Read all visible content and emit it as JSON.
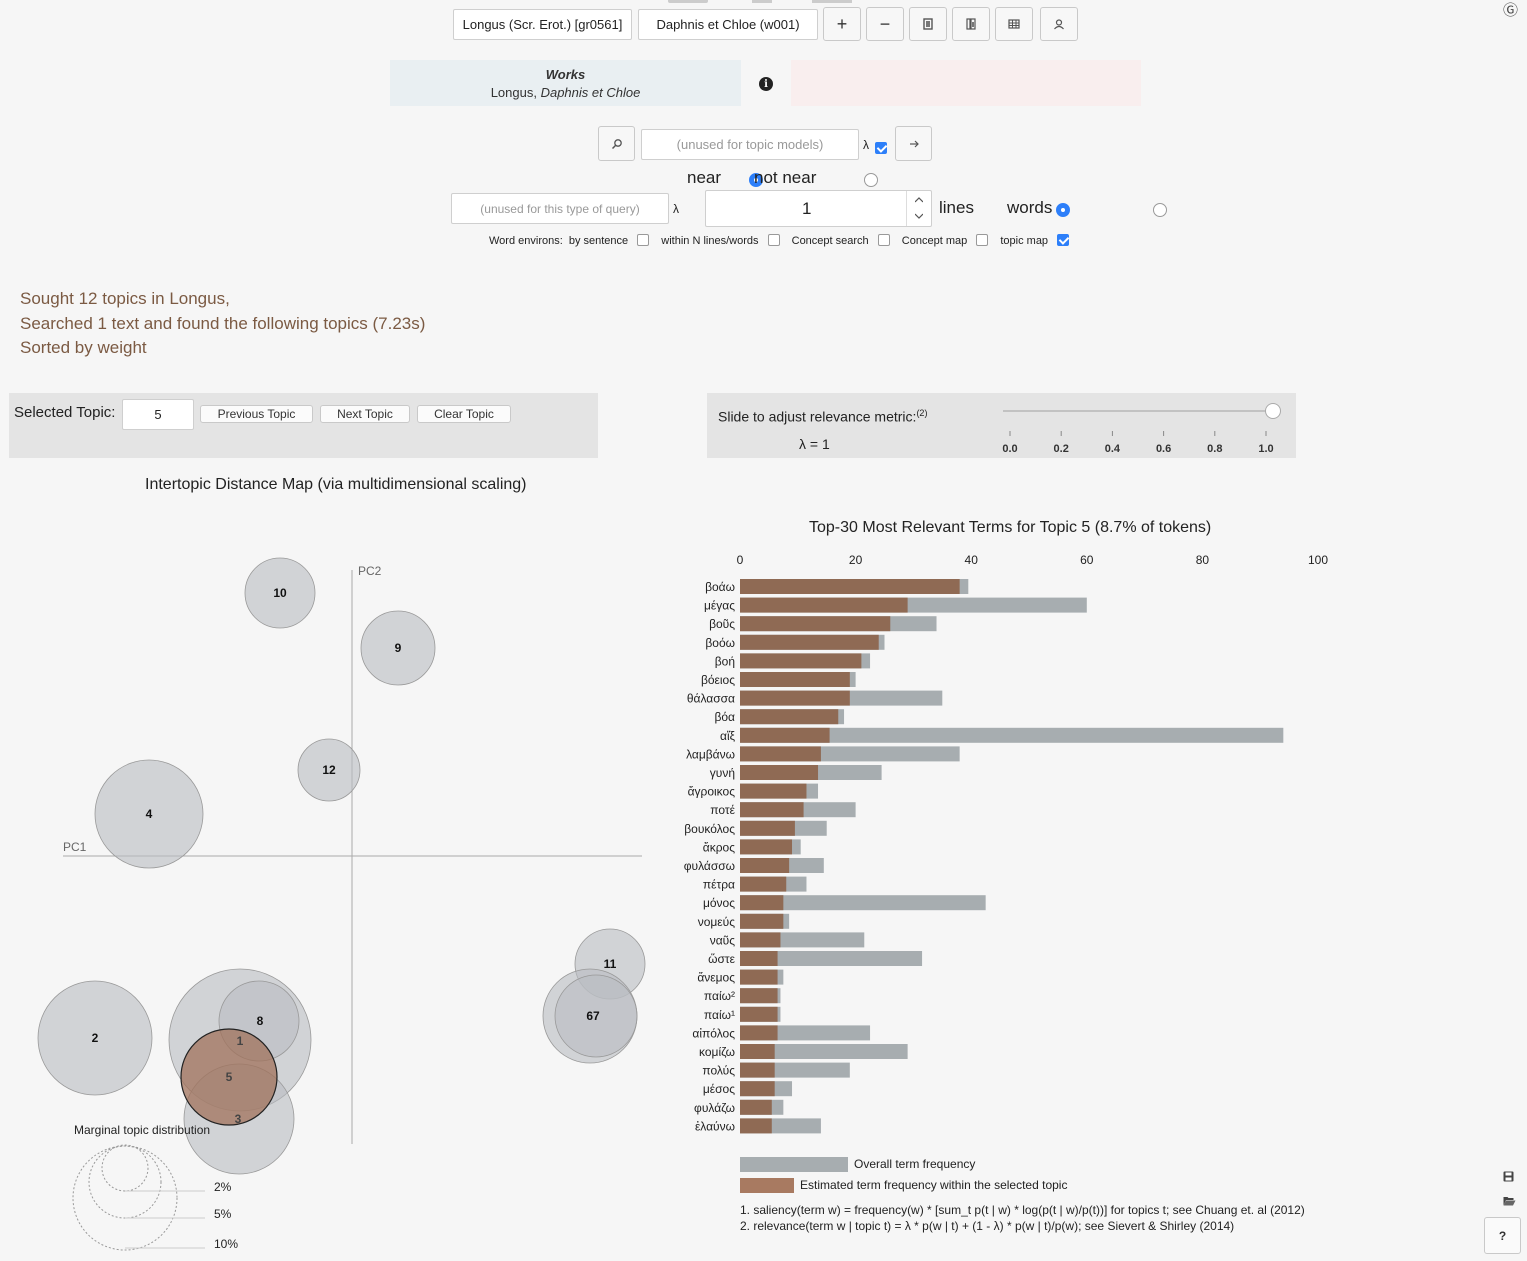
{
  "toolbar": {
    "author_select": "Longus (Scr. Erot.) [gr0561]",
    "work_select": "Daphnis et Chloe (w001)",
    "plus_label": "+",
    "minus_label": "−",
    "corner_label": "Ⓖ"
  },
  "works_box": {
    "heading": "Works",
    "author": "Longus,",
    "title": "Daphnis et Chloe"
  },
  "search": {
    "term_placeholder": "(unused for topic models)",
    "lambda": "λ",
    "near_label": "near",
    "not_near_label": "not near",
    "proximity_placeholder": "(unused for this type of query)",
    "proximity_value": "1",
    "lines_label": "lines",
    "words_label": "words",
    "environs_label": "Word environs:",
    "options": [
      {
        "label": "by sentence",
        "checked": false
      },
      {
        "label": "within N lines/words",
        "checked": false
      },
      {
        "label": "Concept search",
        "checked": false
      },
      {
        "label": "Concept map",
        "checked": false
      },
      {
        "label": "topic map",
        "checked": true
      }
    ]
  },
  "results": {
    "line1": "Sought 12 topics in Longus,",
    "line2": "Searched 1 text and found the following topics (7.23s)",
    "line3": "Sorted by weight"
  },
  "controls": {
    "selected_topic_label": "Selected Topic:",
    "selected_topic_value": "5",
    "prev_label": "Previous Topic",
    "next_label": "Next Topic",
    "clear_label": "Clear Topic",
    "slider_label": "Slide to adjust relevance metric:",
    "slider_sup": "(2)",
    "lambda_value": "λ = 1",
    "slider_value": 1.0,
    "slider_ticks": [
      "0.0",
      "0.2",
      "0.4",
      "0.6",
      "0.8",
      "1.0"
    ]
  },
  "topic_map": {
    "title": "Intertopic Distance Map (via multidimensional scaling)",
    "pc1": "PC1",
    "pc2": "PC2",
    "marginal_label": "Marginal topic distribution",
    "marginal_ticks": [
      "2%",
      "5%",
      "10%"
    ],
    "topics": [
      "10",
      "9",
      "12",
      "4",
      "2",
      "8",
      "1",
      "5",
      "3",
      "11",
      "6",
      "7"
    ],
    "selected": "5",
    "colors": {
      "circle": "#b9bdc2",
      "selected": "#a0725b"
    }
  },
  "chart_data": {
    "type": "bar",
    "title": "Top-30 Most Relevant Terms for Topic 5 (8.7% of tokens)",
    "xlim": [
      0,
      100
    ],
    "x_ticks": [
      "0",
      "20",
      "40",
      "60",
      "80",
      "100"
    ],
    "categories": [
      "βοάω",
      "μέγας",
      "βοῦς",
      "βοόω",
      "βοή",
      "βόειος",
      "θάλασσα",
      "βόα",
      "αἴξ",
      "λαμβάνω",
      "γυνή",
      "ἄγροικος",
      "ποτέ",
      "βουκόλος",
      "ἄκρος",
      "φυλάσσω",
      "πέτρα",
      "μόνος",
      "νομεύς",
      "ναῦς",
      "ὥστε",
      "ἄνεμος",
      "παίω²",
      "παίω¹",
      "αἰπόλος",
      "κομίζω",
      "πολύς",
      "μέσος",
      "φυλάζω",
      "ἐλαύνω"
    ],
    "series": [
      {
        "name": "Overall term frequency",
        "color": "#a7adb0",
        "values": [
          39.5,
          60,
          34,
          25,
          22.5,
          20,
          35,
          18,
          94,
          38,
          24.5,
          13.5,
          20,
          15,
          10.5,
          14.5,
          11.5,
          42.5,
          8.5,
          21.5,
          31.5,
          7.5,
          7,
          7,
          22.5,
          29,
          19,
          9,
          7.5,
          14
        ]
      },
      {
        "name": "Estimated term frequency within the selected topic",
        "color": "#8f6a54",
        "values": [
          38,
          29,
          26,
          24,
          21,
          19,
          19,
          17,
          15.5,
          14,
          13.5,
          11.5,
          11,
          9.5,
          9,
          8.5,
          8,
          7.5,
          7.5,
          7,
          6.5,
          6.5,
          6.5,
          6.5,
          6.5,
          6,
          6,
          6,
          5.5,
          5.5
        ]
      }
    ],
    "legend": [
      "Overall term frequency",
      "Estimated term frequency within the selected topic"
    ],
    "legend_placement": "bottom"
  },
  "footnotes": {
    "note1": "1. saliency(term w) = frequency(w) * [sum_t p(t | w) * log(p(t | w)/p(t))] for topics t; see Chuang et. al (2012)",
    "note2": "2. relevance(term w | topic t) = λ * p(w | t) + (1 - λ) * p(w | t)/p(w); see Sievert & Shirley (2014)"
  },
  "side": {
    "help_label": "?"
  }
}
